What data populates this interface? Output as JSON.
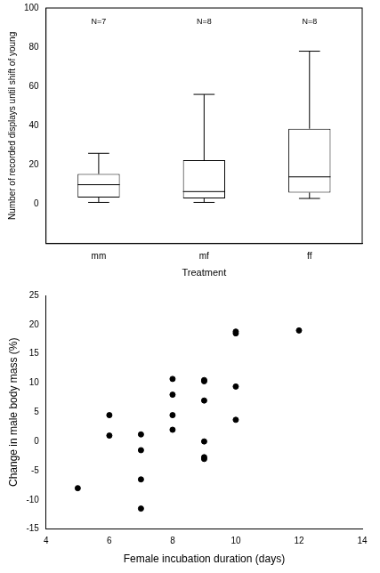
{
  "chart_data": [
    {
      "type": "box",
      "categories": [
        "mm",
        "mf",
        "ff"
      ],
      "boxes": [
        {
          "min": 1,
          "q1": 3.5,
          "median": 10,
          "q3": 15.5,
          "max": 26
        },
        {
          "min": 1,
          "q1": 3,
          "median": 6.5,
          "q3": 22.5,
          "max": 56
        },
        {
          "min": 3,
          "q1": 6,
          "median": 14,
          "q3": 38.5,
          "max": 78
        }
      ],
      "annotations": [
        "N=7",
        "N=8",
        "N=8"
      ],
      "x_label": "Treatment",
      "y_label": "Number of recorded displays until shift of young",
      "ylim": [
        -20,
        100
      ],
      "yticks": [
        0,
        20,
        40,
        60,
        80,
        100
      ],
      "grid": false,
      "color": "#000000"
    },
    {
      "type": "scatter",
      "x": [
        5,
        6,
        6,
        7,
        7,
        7,
        7,
        8,
        8,
        8,
        8,
        9,
        9,
        9,
        9,
        9,
        9,
        10,
        10,
        10,
        10,
        12
      ],
      "values": [
        -8,
        4.5,
        1,
        1.2,
        -1.5,
        -6.5,
        -11.5,
        10.7,
        8,
        4.5,
        2,
        10.5,
        10.3,
        7,
        0,
        -2.7,
        -3,
        18.8,
        18.5,
        9.4,
        3.7,
        19
      ],
      "x_label": "Female incubation duration (days)",
      "y_label": "Change in male body mass (%)",
      "xlim": [
        4,
        14
      ],
      "xticks": [
        4,
        6,
        8,
        10,
        12,
        14
      ],
      "ylim": [
        -15,
        25
      ],
      "yticks": [
        -15,
        -10,
        -5,
        0,
        5,
        10,
        15,
        20,
        25
      ],
      "grid": false,
      "color": "#000000"
    }
  ]
}
